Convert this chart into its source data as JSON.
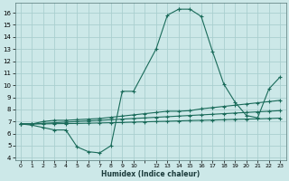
{
  "xlabel": "Humidex (Indice chaleur)",
  "background_color": "#cce8e8",
  "grid_color": "#aacfcf",
  "line_color": "#1a6b5a",
  "x_all": [
    0,
    1,
    2,
    3,
    4,
    5,
    6,
    7,
    8,
    9,
    10,
    11,
    12,
    13,
    14,
    15,
    16,
    17,
    18,
    19,
    20,
    21,
    22,
    23
  ],
  "x_tick_labels": [
    "0",
    "1",
    "2",
    "3",
    "4",
    "5",
    "6",
    "7",
    "8",
    "9",
    "10",
    "",
    "12",
    "13",
    "14",
    "15",
    "16",
    "17",
    "18",
    "19",
    "20",
    "21",
    "22",
    "23"
  ],
  "y_ticks": [
    4,
    5,
    6,
    7,
    8,
    9,
    10,
    11,
    12,
    13,
    14,
    15,
    16
  ],
  "ylim": [
    3.8,
    16.8
  ],
  "xlim": [
    -0.5,
    23.5
  ],
  "series": [
    {
      "x": [
        0,
        1,
        2,
        3,
        4,
        5,
        6,
        7,
        8,
        9,
        10,
        12,
        13,
        14,
        14,
        15,
        16,
        17,
        18,
        19,
        20,
        21,
        22,
        23
      ],
      "y": [
        6.8,
        6.7,
        6.5,
        6.3,
        6.3,
        4.9,
        4.5,
        4.4,
        5.0,
        9.5,
        9.5,
        13.0,
        15.8,
        16.3,
        16.3,
        16.3,
        15.7,
        12.8,
        10.1,
        8.6,
        7.5,
        7.3,
        9.7,
        10.7
      ]
    },
    {
      "x": [
        0,
        1,
        2,
        3,
        4,
        5,
        6,
        7,
        8,
        9,
        10,
        11,
        12,
        13,
        14,
        15,
        16,
        17,
        18,
        19,
        20,
        21,
        22,
        23
      ],
      "y": [
        6.8,
        6.8,
        7.0,
        7.1,
        7.1,
        7.15,
        7.2,
        7.25,
        7.35,
        7.45,
        7.55,
        7.65,
        7.75,
        7.85,
        7.85,
        7.9,
        8.05,
        8.15,
        8.25,
        8.35,
        8.45,
        8.55,
        8.65,
        8.75
      ]
    },
    {
      "x": [
        0,
        1,
        2,
        3,
        4,
        5,
        6,
        7,
        8,
        9,
        10,
        11,
        12,
        13,
        14,
        15,
        16,
        17,
        18,
        19,
        20,
        21,
        22,
        23
      ],
      "y": [
        6.8,
        6.8,
        6.85,
        6.9,
        6.95,
        7.0,
        7.05,
        7.1,
        7.15,
        7.2,
        7.25,
        7.3,
        7.35,
        7.4,
        7.45,
        7.5,
        7.55,
        7.6,
        7.65,
        7.7,
        7.75,
        7.8,
        7.85,
        7.9
      ]
    },
    {
      "x": [
        0,
        1,
        2,
        3,
        4,
        5,
        6,
        7,
        8,
        9,
        10,
        11,
        12,
        13,
        14,
        15,
        16,
        17,
        18,
        19,
        20,
        21,
        22,
        23
      ],
      "y": [
        6.8,
        6.8,
        6.8,
        6.82,
        6.83,
        6.84,
        6.86,
        6.88,
        6.9,
        6.92,
        6.95,
        6.97,
        7.0,
        7.02,
        7.05,
        7.08,
        7.1,
        7.12,
        7.15,
        7.18,
        7.2,
        7.22,
        7.25,
        7.28
      ]
    }
  ]
}
